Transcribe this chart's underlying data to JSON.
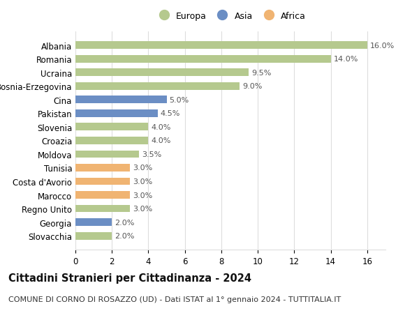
{
  "categories": [
    "Slovacchia",
    "Georgia",
    "Regno Unito",
    "Marocco",
    "Costa d'Avorio",
    "Tunisia",
    "Moldova",
    "Croazia",
    "Slovenia",
    "Pakistan",
    "Cina",
    "Bosnia-Erzegovina",
    "Ucraina",
    "Romania",
    "Albania"
  ],
  "values": [
    2.0,
    2.0,
    3.0,
    3.0,
    3.0,
    3.0,
    3.5,
    4.0,
    4.0,
    4.5,
    5.0,
    9.0,
    9.5,
    14.0,
    16.0
  ],
  "continents": [
    "Europa",
    "Asia",
    "Europa",
    "Africa",
    "Africa",
    "Africa",
    "Europa",
    "Europa",
    "Europa",
    "Asia",
    "Asia",
    "Europa",
    "Europa",
    "Europa",
    "Europa"
  ],
  "colors": {
    "Europa": "#b5c98e",
    "Asia": "#6b8ec4",
    "Africa": "#f0b472"
  },
  "xlim": [
    0,
    17
  ],
  "xticks": [
    0,
    2,
    4,
    6,
    8,
    10,
    12,
    14,
    16
  ],
  "title": "Cittadini Stranieri per Cittadinanza - 2024",
  "subtitle": "COMUNE DI CORNO DI ROSAZZO (UD) - Dati ISTAT al 1° gennaio 2024 - TUTTITALIA.IT",
  "bar_height": 0.55,
  "background_color": "#ffffff",
  "grid_color": "#dddddd",
  "bar_label_fontsize": 8,
  "axis_label_fontsize": 8.5,
  "title_fontsize": 10.5,
  "subtitle_fontsize": 8,
  "legend_fontsize": 9,
  "legend_dot_size": 10
}
